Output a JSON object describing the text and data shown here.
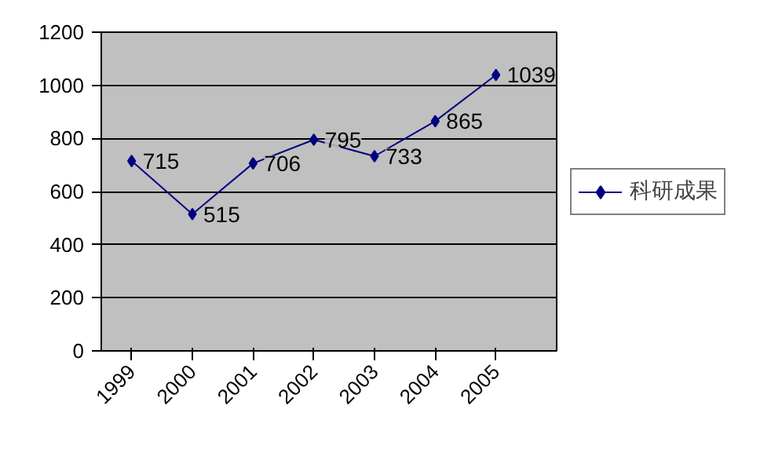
{
  "chart_data": {
    "type": "line",
    "categories": [
      "1999",
      "2000",
      "2001",
      "2002",
      "2003",
      "2004",
      "2005"
    ],
    "series": [
      {
        "name": "科研成果",
        "color": "#000080",
        "values": [
          715,
          515,
          706,
          795,
          733,
          865,
          1039
        ]
      }
    ],
    "ylim": [
      0,
      1200
    ],
    "yticks": [
      0,
      200,
      400,
      600,
      800,
      1000,
      1200
    ],
    "grid": "y",
    "legend": "right",
    "marker": "diamond",
    "line_style": "solid",
    "data_labels": true
  }
}
